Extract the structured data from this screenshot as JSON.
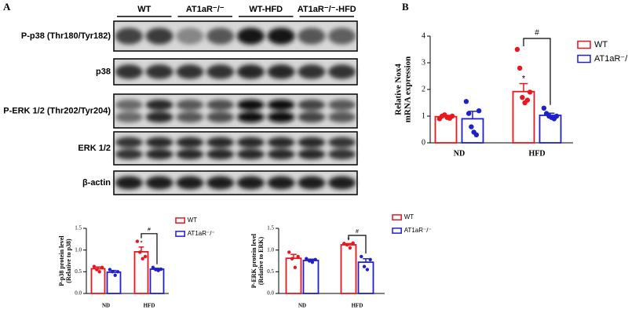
{
  "panel_a": "A",
  "panel_b": "B",
  "blot": {
    "groups": [
      "WT",
      "AT1aR⁻/⁻",
      "WT-HFD",
      "AT1aR⁻/⁻-HFD"
    ],
    "rows": [
      "P-p38 (Thr180/Tyr182)",
      "p38",
      "P-ERK 1/2 (Thr202/Tyr204)",
      "ERK 1/2",
      "β-actin"
    ]
  },
  "chart_data": [
    {
      "type": "bar",
      "ylabel": [
        "Relative Nox4",
        "mRNA expression"
      ],
      "categories": [
        "ND",
        "HFD"
      ],
      "ylim": [
        0,
        4
      ],
      "yticks": [
        0,
        1,
        2,
        3,
        4
      ],
      "star": "*",
      "hash": "#",
      "series": [
        {
          "name": "WT",
          "color": "#e8161e",
          "values": [
            0.98,
            1.92
          ],
          "errors": [
            0.05,
            0.3
          ],
          "points": [
            [
              0.9,
              1.0,
              1.05,
              0.95,
              0.92,
              1.0
            ],
            [
              3.5,
              2.8,
              1.7,
              1.5,
              1.6,
              1.9
            ]
          ]
        },
        {
          "name": "AT1aR⁻/⁻",
          "color": "#2020c8",
          "values": [
            0.9,
            1.03
          ],
          "errors": [
            0.28,
            0.08
          ],
          "points": [
            [
              1.55,
              1.1,
              0.6,
              0.4,
              0.3,
              1.2
            ],
            [
              1.3,
              1.1,
              1.0,
              0.95,
              0.9,
              1.0
            ]
          ]
        }
      ]
    },
    {
      "type": "bar",
      "ylabel": [
        "P-p38 protein level",
        "(Relative to p38)"
      ],
      "categories": [
        "ND",
        "HFD"
      ],
      "ylim": [
        0,
        1.5
      ],
      "yticks": [
        {
          "value": 0,
          "label": "0.0"
        },
        0.5,
        {
          "value": 1,
          "label": "1.0"
        },
        1.5
      ],
      "star": "*",
      "hash": "#",
      "series": [
        {
          "name": "WT",
          "color": "#e8161e",
          "values": [
            0.57,
            0.96
          ],
          "errors": [
            0.04,
            0.11
          ],
          "points": [
            [
              0.62,
              0.55,
              0.5,
              0.6
            ],
            [
              1.2,
              0.95,
              0.8,
              0.85
            ]
          ]
        },
        {
          "name": "AT1aR⁻/⁻",
          "color": "#2020c8",
          "values": [
            0.49,
            0.56
          ],
          "errors": [
            0.04,
            0.02
          ],
          "points": [
            [
              0.55,
              0.5,
              0.42,
              0.5
            ],
            [
              0.6,
              0.55,
              0.53,
              0.56
            ]
          ]
        }
      ]
    },
    {
      "type": "bar",
      "ylabel": [
        "P-ERK protein level",
        "(Relative to ERK)"
      ],
      "categories": [
        "ND",
        "HFD"
      ],
      "ylim": [
        0,
        1.5
      ],
      "yticks": [
        {
          "value": 0,
          "label": "0.0"
        },
        0.5,
        {
          "value": 1,
          "label": "1.0"
        },
        1.5
      ],
      "star": "*",
      "hash": "#",
      "series": [
        {
          "name": "WT",
          "color": "#e8161e",
          "values": [
            0.81,
            1.12
          ],
          "errors": [
            0.09,
            0.03
          ],
          "points": [
            [
              0.95,
              0.8,
              0.6,
              0.85
            ],
            [
              1.15,
              1.12,
              1.05,
              1.16
            ]
          ]
        },
        {
          "name": "AT1aR⁻/⁻",
          "color": "#2020c8",
          "values": [
            0.76,
            0.72
          ],
          "errors": [
            0.03,
            0.08
          ],
          "points": [
            [
              0.8,
              0.75,
              0.72,
              0.78
            ],
            [
              0.85,
              0.62,
              0.55,
              0.78
            ]
          ]
        }
      ]
    }
  ]
}
